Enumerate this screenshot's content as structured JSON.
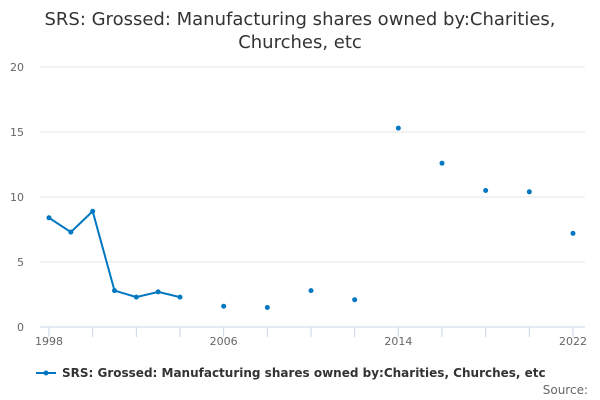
{
  "chart_data": {
    "type": "line",
    "title": "SRS: Grossed: Manufacturing shares owned by:Charities, Churches, etc",
    "xlabel": "",
    "ylabel": "",
    "ylim": [
      0,
      20
    ],
    "xlim": [
      1998,
      2022
    ],
    "yticks": [
      "0",
      "5",
      "10",
      "15",
      "20"
    ],
    "xtick_labels": [
      "1998",
      "2006",
      "2014",
      "2022"
    ],
    "grid": true,
    "legend": "bottom",
    "color": "#0077c0",
    "series": [
      {
        "name": "SRS: Grossed: Manufacturing shares owned by:Charities, Churches, etc",
        "x": [
          1998,
          1999,
          2000,
          2001,
          2002,
          2003,
          2004,
          2006,
          2008,
          2010,
          2012,
          2014,
          2016,
          2018,
          2020,
          2022
        ],
        "y": [
          8.4,
          7.3,
          8.9,
          2.8,
          2.3,
          2.7,
          2.3,
          1.6,
          1.5,
          2.8,
          2.1,
          15.3,
          12.6,
          10.5,
          10.4,
          7.2
        ]
      }
    ]
  },
  "footer": {
    "source_label": "Source:"
  }
}
